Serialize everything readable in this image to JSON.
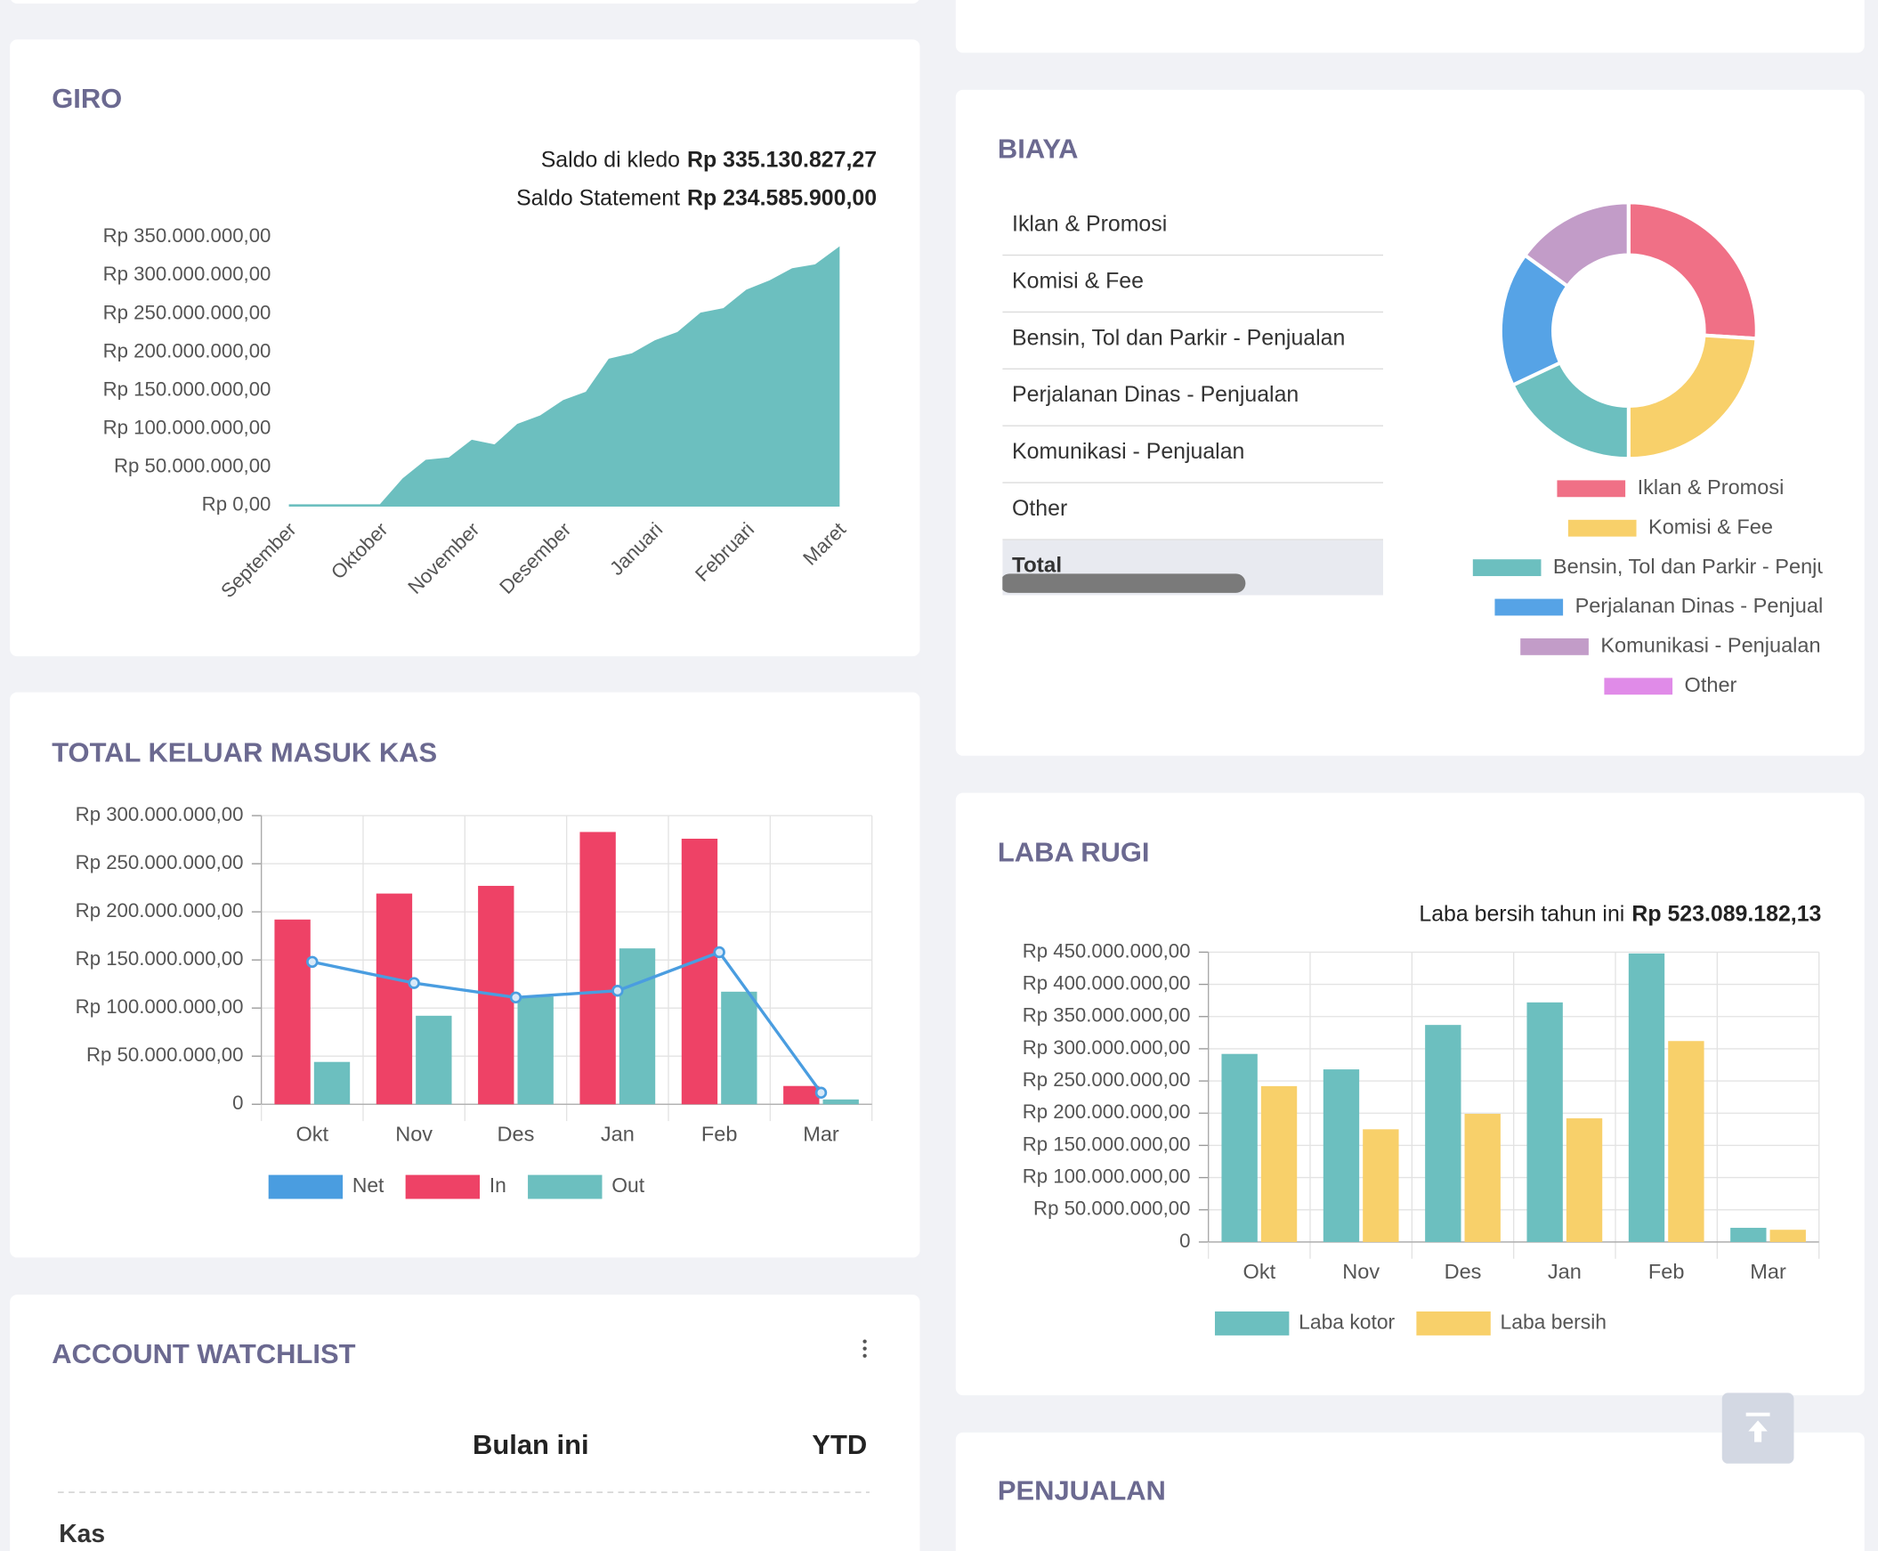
{
  "chart_data": [
    {
      "type": "area",
      "title": "GIRO",
      "annotations": [
        {
          "label": "Saldo di kledo",
          "value": "Rp 335.130.827,27"
        },
        {
          "label": "Saldo Statement",
          "value": "Rp 234.585.900,00"
        }
      ],
      "categories": [
        "September",
        null,
        null,
        null,
        "Oktober",
        null,
        null,
        null,
        "November",
        null,
        null,
        null,
        "Desember",
        null,
        null,
        null,
        "Januari",
        null,
        null,
        null,
        "Februari",
        null,
        null,
        null,
        "Maret"
      ],
      "values": [
        0,
        0,
        0,
        0,
        0,
        34000000,
        58000000,
        61000000,
        84000000,
        78000000,
        105000000,
        116000000,
        136000000,
        147000000,
        190000000,
        197000000,
        214000000,
        225000000,
        250000000,
        256000000,
        280000000,
        292000000,
        308000000,
        313000000,
        335000000
      ],
      "color": "#6cbfbf",
      "ylim": [
        0,
        350000000
      ],
      "yticks": [
        {
          "value": 0,
          "label": "Rp 0,00"
        },
        {
          "value": 50000000,
          "label": "Rp 50.000.000,00"
        },
        {
          "value": 100000000,
          "label": "Rp 100.000.000,00"
        },
        {
          "value": 150000000,
          "label": "Rp 150.000.000,00"
        },
        {
          "value": 200000000,
          "label": "Rp 200.000.000,00"
        },
        {
          "value": 250000000,
          "label": "Rp 250.000.000,00"
        },
        {
          "value": 300000000,
          "label": "Rp 300.000.000,00"
        },
        {
          "value": 350000000,
          "label": "Rp 350.000.000,00"
        }
      ],
      "grid": false
    },
    {
      "type": "combo",
      "title": "TOTAL KELUAR MASUK KAS",
      "categories": [
        "Okt",
        "Nov",
        "Des",
        "Jan",
        "Feb",
        "Mar"
      ],
      "series": [
        {
          "name": "Net",
          "type": "line",
          "color": "#4a9de0",
          "values": [
            148000000,
            126000000,
            111000000,
            118000000,
            158000000,
            12000000
          ]
        },
        {
          "name": "In",
          "type": "bar",
          "color": "#ee4266",
          "values": [
            192000000,
            219000000,
            227000000,
            283000000,
            276000000,
            19000000
          ]
        },
        {
          "name": "Out",
          "type": "bar",
          "color": "#6cbfbf",
          "values": [
            44000000,
            92000000,
            112000000,
            162000000,
            117000000,
            5000000
          ]
        }
      ],
      "ylim": [
        0,
        300000000
      ],
      "yticks": [
        0,
        {
          "value": 50000000,
          "label": "Rp 50.000.000,00"
        },
        {
          "value": 100000000,
          "label": "Rp 100.000.000,00"
        },
        {
          "value": 150000000,
          "label": "Rp 150.000.000,00"
        },
        {
          "value": 200000000,
          "label": "Rp 200.000.000,00"
        },
        {
          "value": 250000000,
          "label": "Rp 250.000.000,00"
        },
        {
          "value": 300000000,
          "label": "Rp 300.000.000,00"
        }
      ],
      "grid": true,
      "legend": "bottom"
    },
    {
      "type": "donut",
      "title": "BIAYA",
      "categories": [
        "Iklan & Promosi",
        "Komisi & Fee",
        "Bensin, Tol dan Parkir - Penjualan",
        "Perjalanan Dinas - Penjualan",
        "Komunikasi - Penjualan",
        "Other"
      ],
      "values": [
        26,
        24,
        18,
        17,
        15,
        0
      ],
      "colors": [
        "#f07086",
        "#f8d06a",
        "#6cbfbf",
        "#56a3e6",
        "#c29cc8",
        "#e08be8"
      ],
      "table_total": "Total",
      "legend": "bottom"
    },
    {
      "type": "bar",
      "title": "LABA RUGI",
      "annotations": [
        {
          "label": "Laba bersih tahun ini",
          "value": "Rp 523.089.182,13"
        }
      ],
      "categories": [
        "Okt",
        "Nov",
        "Des",
        "Jan",
        "Feb",
        "Mar"
      ],
      "series": [
        {
          "name": "Laba kotor",
          "type": "bar",
          "color": "#6cbfbf",
          "values": [
            292000000,
            268000000,
            337000000,
            372000000,
            448000000,
            22000000
          ]
        },
        {
          "name": "Laba bersih",
          "type": "bar",
          "color": "#f8d06a",
          "values": [
            242000000,
            175000000,
            199000000,
            192000000,
            312000000,
            19000000
          ]
        }
      ],
      "ylim": [
        0,
        450000000
      ],
      "yticks": [
        0,
        {
          "value": 50000000,
          "label": "Rp 50.000.000,00"
        },
        {
          "value": 100000000,
          "label": "Rp 100.000.000,00"
        },
        {
          "value": 150000000,
          "label": "Rp 150.000.000,00"
        },
        {
          "value": 200000000,
          "label": "Rp 200.000.000,00"
        },
        {
          "value": 250000000,
          "label": "Rp 250.000.000,00"
        },
        {
          "value": 300000000,
          "label": "Rp 300.000.000,00"
        },
        {
          "value": 350000000,
          "label": "Rp 350.000.000,00"
        },
        {
          "value": 400000000,
          "label": "Rp 400.000.000,00"
        },
        {
          "value": 450000000,
          "label": "Rp 450.000.000,00"
        }
      ],
      "grid": true,
      "legend": "bottom"
    }
  ],
  "watchlist": {
    "title": "ACCOUNT WATCHLIST",
    "columns": [
      "Bulan ini",
      "YTD"
    ],
    "rows": [
      "Kas"
    ]
  },
  "penjualan": {
    "title": "PENJUALAN"
  }
}
